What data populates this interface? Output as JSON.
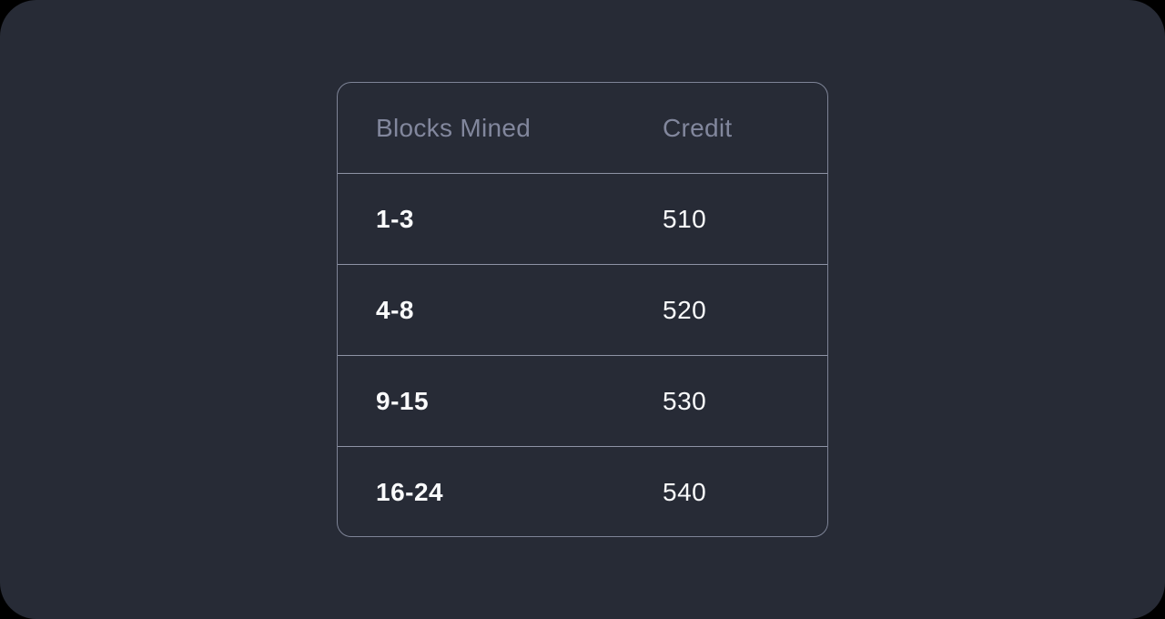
{
  "colors": {
    "page_background": "#000000",
    "screen_background": "#272b36",
    "card_border": "#7e8497",
    "row_separator": "#8e93a5",
    "header_text": "#82879d",
    "cell_text": "#fafbfc"
  },
  "table": {
    "columns": [
      {
        "label": "Blocks Mined"
      },
      {
        "label": "Credit"
      }
    ],
    "rows": [
      {
        "blocks": "1-3",
        "credit": "510"
      },
      {
        "blocks": "4-8",
        "credit": "520"
      },
      {
        "blocks": "9-15",
        "credit": "530"
      },
      {
        "blocks": "16-24",
        "credit": "540"
      }
    ]
  }
}
